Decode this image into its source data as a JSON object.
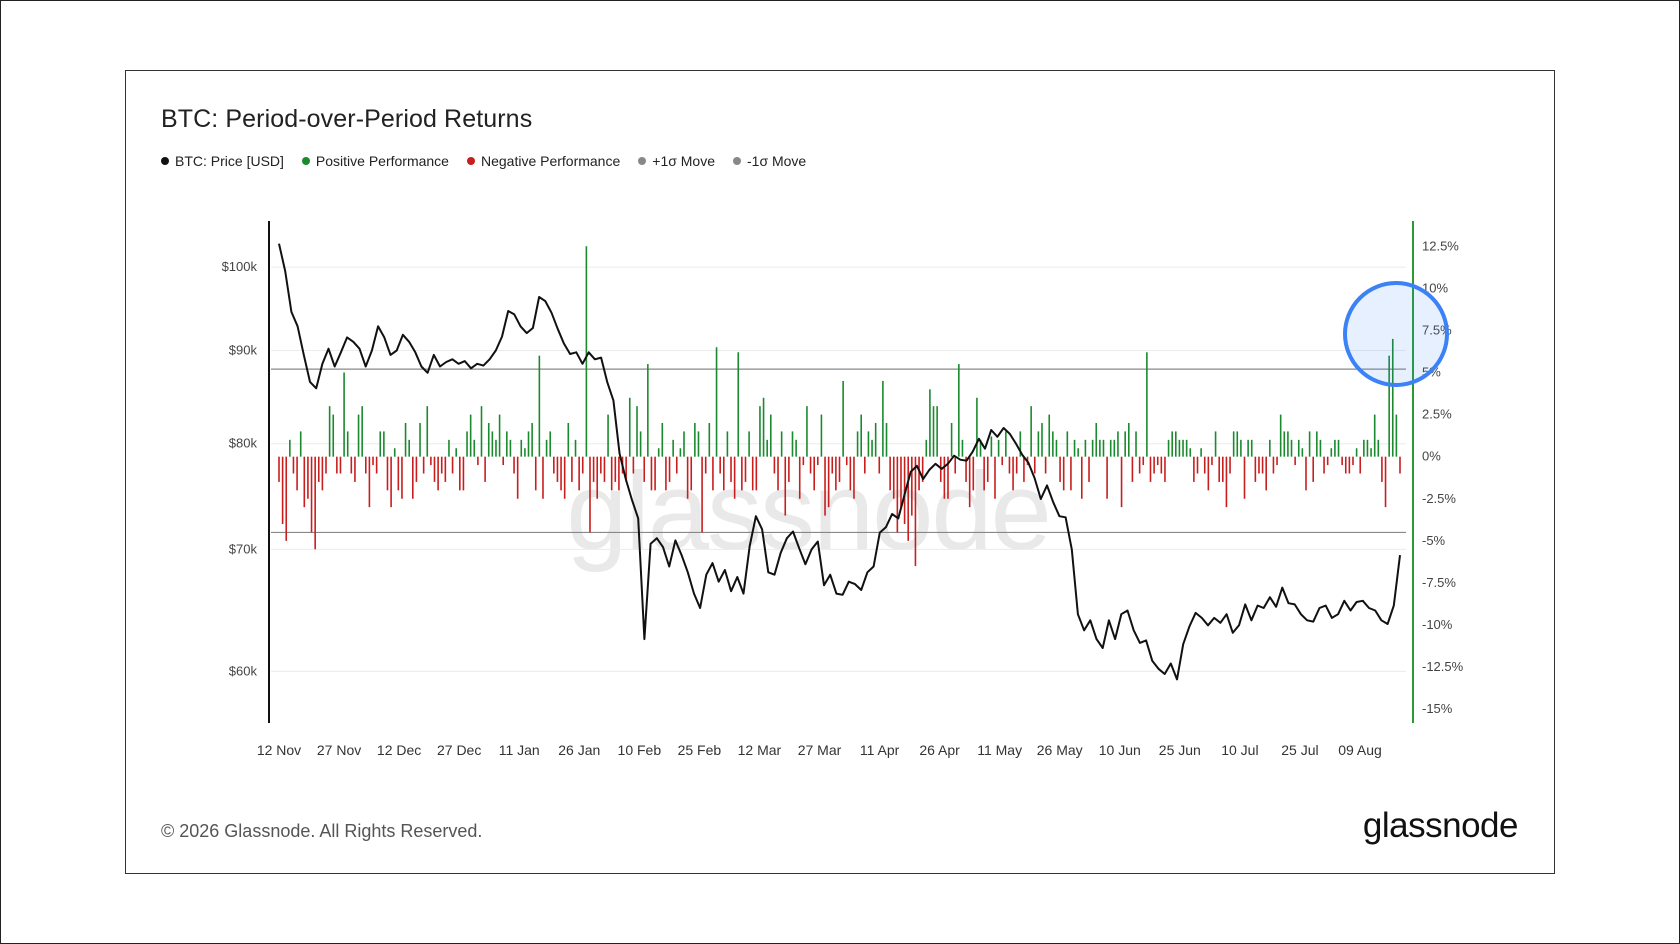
{
  "title": "BTC: Period-over-Period Returns",
  "legend": [
    {
      "label": "BTC: Price [USD]",
      "color": "#111111"
    },
    {
      "label": "Positive Performance",
      "color": "#1b8a2e"
    },
    {
      "label": "Negative Performance",
      "color": "#c81e1e"
    },
    {
      "label": "+1σ Move",
      "color": "#888888"
    },
    {
      "label": "-1σ Move",
      "color": "#888888"
    }
  ],
  "footer": {
    "copyright": "© 2026 Glassnode. All Rights Reserved.",
    "brand": "glassnode"
  },
  "watermark": "glassnode",
  "chart_data": {
    "type": "line+bar",
    "left_axis": {
      "scale": "log",
      "ticks": [
        {
          "label": "$100k",
          "value": 100000
        },
        {
          "label": "$90k",
          "value": 90000
        },
        {
          "label": "$80k",
          "value": 80000
        },
        {
          "label": "$70k",
          "value": 70000
        },
        {
          "label": "$60k",
          "value": 60000
        }
      ],
      "range": [
        56000,
        106000
      ]
    },
    "right_axis": {
      "ticks": [
        {
          "label": "12.5%",
          "value": 12.5
        },
        {
          "label": "10%",
          "value": 10
        },
        {
          "label": "7.5%",
          "value": 7.5
        },
        {
          "label": "5%",
          "value": 5
        },
        {
          "label": "2.5%",
          "value": 2.5
        },
        {
          "label": "0%",
          "value": 0
        },
        {
          "label": "-2.5%",
          "value": -2.5
        },
        {
          "label": "-5%",
          "value": -5
        },
        {
          "label": "-7.5%",
          "value": -7.5
        },
        {
          "label": "-10%",
          "value": -10
        },
        {
          "label": "-12.5%",
          "value": -12.5
        },
        {
          "label": "-15%",
          "value": -15
        }
      ],
      "range": [
        -16,
        14
      ]
    },
    "x_ticks": [
      "12 Nov",
      "27 Nov",
      "12 Dec",
      "27 Dec",
      "11 Jan",
      "26 Jan",
      "10 Feb",
      "25 Feb",
      "12 Mar",
      "27 Mar",
      "11 Apr",
      "26 Apr",
      "11 May",
      "26 May",
      "10 Jun",
      "25 Jun",
      "10 Jul",
      "25 Jul",
      "09 Aug"
    ],
    "sigma_bands": {
      "plus_1sigma": 5.2,
      "minus_1sigma": -4.5
    },
    "price_series": {
      "name": "BTC: Price [USD]",
      "values": [
        103000,
        99500,
        94500,
        92800,
        89500,
        86500,
        85800,
        88500,
        90200,
        88200,
        89800,
        91500,
        91000,
        90200,
        88200,
        90000,
        92800,
        91500,
        89500,
        90000,
        91800,
        91000,
        89800,
        88200,
        87500,
        89500,
        88200,
        88700,
        89000,
        88500,
        88800,
        88000,
        88500,
        88300,
        89000,
        90000,
        91600,
        94600,
        94200,
        92800,
        92000,
        92600,
        96300,
        95800,
        94400,
        92500,
        90800,
        89600,
        89800,
        88500,
        89800,
        89000,
        89200,
        86500,
        84500,
        79000,
        76500,
        74500,
        72800,
        62500,
        70500,
        71000,
        70200,
        68500,
        70800,
        69500,
        68000,
        66200,
        65000,
        67800,
        68800,
        67200,
        68200,
        66400,
        67600,
        66200,
        70300,
        73000,
        71800,
        68000,
        67800,
        69700,
        71000,
        71600,
        70100,
        68700,
        70000,
        70700,
        66900,
        67800,
        66200,
        66100,
        67200,
        67000,
        66500,
        68000,
        68500,
        71500,
        72000,
        73200,
        72800,
        75000,
        77200,
        77800,
        76500,
        77400,
        78000,
        77500,
        78000,
        78800,
        78400,
        78300,
        79200,
        80500,
        79500,
        81400,
        80700,
        81600,
        81000,
        80000,
        78900,
        78100,
        76600,
        74600,
        75900,
        74300,
        73000,
        72900,
        70000,
        64500,
        63200,
        64000,
        62500,
        61800,
        64000,
        62500,
        64500,
        64800,
        63200,
        62200,
        62400,
        60800,
        60200,
        59800,
        60600,
        59400,
        62100,
        63500,
        64600,
        64200,
        63600,
        64200,
        63800,
        64500,
        63000,
        63600,
        65300,
        64000,
        65200,
        65000,
        65900,
        65100,
        66700,
        65400,
        65300,
        64500,
        64000,
        63900,
        65000,
        65200,
        64200,
        64500,
        65600,
        64800,
        65500,
        65600,
        65000,
        64800,
        64000,
        63700,
        65200,
        69500
      ],
      "color": "#111111"
    },
    "returns_series": {
      "name": "Returns (%)",
      "values": [
        -1.5,
        -4,
        -5,
        1,
        -1,
        -2,
        1.5,
        -3,
        -2.5,
        -4.5,
        -5.5,
        -1.5,
        -2,
        -1,
        3,
        2.5,
        -1,
        -1,
        5,
        1.5,
        -1,
        -1.5,
        2.5,
        3,
        -1,
        -3,
        -0.5,
        -1,
        1.5,
        1.5,
        -2,
        -3,
        0.5,
        -2,
        -2.5,
        2,
        1,
        -2.5,
        -1.5,
        2,
        -1,
        3,
        -0.5,
        -1.5,
        -2,
        -1,
        -1.5,
        1,
        -1,
        0.5,
        -2,
        -2,
        1.5,
        2.5,
        1,
        -0.5,
        3,
        -1.5,
        2,
        1.5,
        1,
        2.5,
        -0.5,
        1.5,
        1,
        -1,
        -2.5,
        1,
        0.5,
        1.5,
        2,
        -2,
        6,
        -2.5,
        1,
        1.5,
        -1,
        -1.5,
        -2,
        -2.5,
        2,
        -1.5,
        1,
        -2,
        -1,
        12.5,
        -4.5,
        -1.5,
        -2.5,
        -1,
        -1.5,
        2.5,
        -2,
        -1.5,
        -2,
        -1,
        -1.5,
        3.5,
        -1,
        3,
        1.5,
        -1.5,
        5.5,
        -2,
        -2,
        0.5,
        2,
        -2,
        -1.5,
        1,
        -1,
        0.5,
        1.5,
        -2.5,
        -2,
        2,
        1.5,
        -4.5,
        -1,
        2,
        -2,
        6.5,
        -1,
        -2,
        1.5,
        -1.5,
        -2.5,
        6.2,
        -2,
        -1.5,
        1.5,
        -2,
        -2,
        3,
        3.5,
        1,
        2.5,
        -1,
        -2,
        1.5,
        -3.5,
        -1.5,
        1.5,
        1,
        -2.5,
        -0.5,
        3,
        -1,
        -2,
        -0.5,
        2.5,
        -3.5,
        -3,
        -1,
        -2,
        -1.5,
        4.5,
        -0.5,
        -2,
        -2.5,
        1.5,
        2.5,
        -1,
        1.5,
        1,
        2,
        -1,
        4.5,
        2,
        -2,
        -2.5,
        -4.5,
        -3,
        -4,
        -5,
        -3.5,
        -6.5,
        -2,
        -1.5,
        1,
        4,
        3,
        3,
        -1.5,
        -2.5,
        -2.5,
        2,
        -1,
        5.5,
        1,
        -1.5,
        -3,
        -2,
        3.5,
        1,
        -2,
        -1.5,
        1.2,
        -2.5,
        1,
        -0.5,
        1.5,
        -1,
        -2,
        -1,
        1.5,
        -1.5,
        -0.5,
        3,
        -1,
        1.5,
        2,
        -1,
        2.5,
        1.5,
        1,
        -1.5,
        -2,
        1.5,
        -2,
        1,
        0.5,
        -2.5,
        1,
        -1.5,
        1,
        2,
        1,
        1,
        -2.5,
        1,
        1,
        1.5,
        -3,
        1.5,
        2,
        -1.5,
        1.5,
        -1,
        -0.5,
        6.2,
        -1.5,
        -1,
        -0.5,
        -1,
        -1.5,
        1,
        1.5,
        1.5,
        1,
        1,
        1,
        0.5,
        -1.5,
        -1,
        0.5,
        -1,
        -2,
        -0.5,
        1.5,
        -1.5,
        -1.5,
        -3,
        -1,
        1.5,
        1.5,
        1,
        -2.5,
        1,
        1,
        -1.5,
        -1,
        -1,
        -2,
        1,
        -1,
        -0.5,
        2.5,
        1.5,
        1.5,
        1,
        -0.5,
        1,
        0.5,
        -2,
        1.5,
        -1.5,
        1.5,
        1,
        -1,
        -0.5,
        0.5,
        1,
        1,
        -0.5,
        -1,
        -1,
        -0.5,
        0.5,
        -1,
        1,
        1,
        0.5,
        2.5,
        1,
        -1.5,
        -3,
        6,
        7,
        2.5,
        -1
      ],
      "positive_color": "#1b8a2e",
      "negative_color": "#c81e1e"
    },
    "highlight": {
      "description": "circle",
      "color": "#3b82f6"
    }
  }
}
